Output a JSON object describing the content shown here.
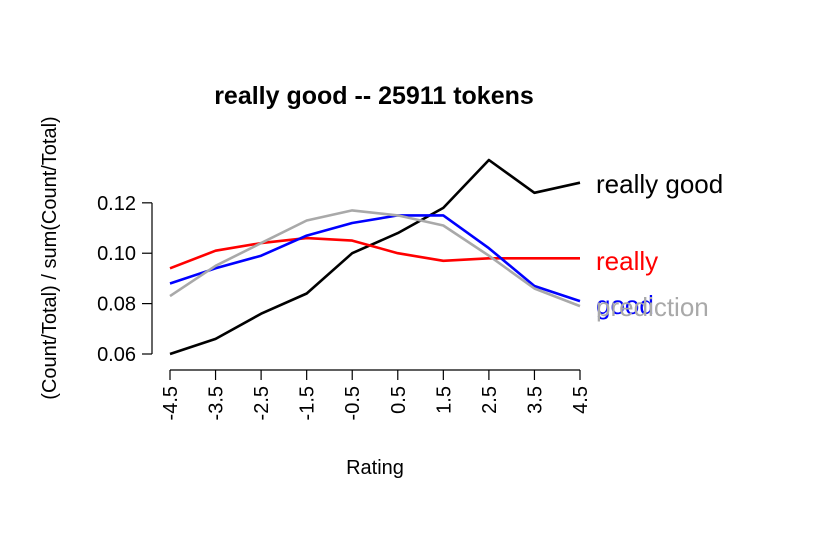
{
  "chart_data": {
    "type": "line",
    "title": "really good -- 25911 tokens",
    "xlabel": "Rating",
    "ylabel": "(Count/Total) / sum(Count/Total)",
    "x": [
      -4.5,
      -3.5,
      -2.5,
      -1.5,
      -0.5,
      0.5,
      1.5,
      2.5,
      3.5,
      4.5
    ],
    "x_tick_labels": [
      "-4.5",
      "-3.5",
      "-2.5",
      "-1.5",
      "-0.5",
      "0.5",
      "1.5",
      "2.5",
      "3.5",
      "4.5"
    ],
    "y_ticks": [
      0.06,
      0.08,
      0.1,
      0.12
    ],
    "y_tick_labels": [
      "0.06",
      "0.08",
      "0.10",
      "0.12"
    ],
    "ylim": [
      0.06,
      0.137
    ],
    "grid": false,
    "series": [
      {
        "name": "really good",
        "color": "#000000",
        "values": [
          0.06,
          0.066,
          0.076,
          0.084,
          0.1,
          0.108,
          0.118,
          0.137,
          0.124,
          0.128
        ]
      },
      {
        "name": "really",
        "color": "#ff0000",
        "values": [
          0.094,
          0.101,
          0.104,
          0.106,
          0.105,
          0.1,
          0.097,
          0.098,
          0.098,
          0.098
        ]
      },
      {
        "name": "good",
        "color": "#0000ff",
        "values": [
          0.088,
          0.094,
          0.099,
          0.107,
          0.112,
          0.115,
          0.115,
          0.102,
          0.087,
          0.081
        ]
      },
      {
        "name": "prediction",
        "color": "#a9a9a9",
        "values": [
          0.083,
          0.095,
          0.104,
          0.113,
          0.117,
          0.115,
          0.111,
          0.099,
          0.086,
          0.079
        ]
      }
    ]
  }
}
